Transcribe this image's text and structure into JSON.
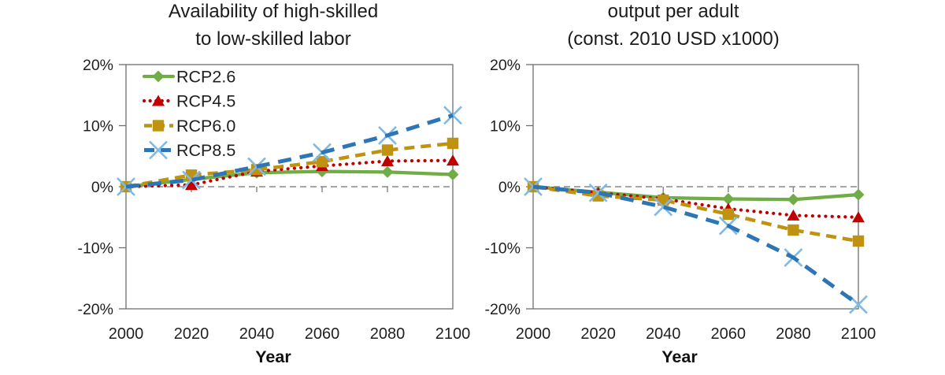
{
  "figure": {
    "background": "#ffffff",
    "text_color": "#1f1f1f",
    "axis_color": "#6e6e6e",
    "zero_line_color": "#999999",
    "tick_color": "#8a8a8a"
  },
  "chart_data": [
    {
      "type": "line",
      "title_line1": "Availability of high-skilled",
      "title_line2": "to low-skilled labor",
      "xlabel": "Year",
      "x": [
        2000,
        2020,
        2040,
        2060,
        2080,
        2100
      ],
      "x_tick_labels": [
        "2000",
        "2020",
        "2040",
        "2060",
        "2080",
        "2100"
      ],
      "y_ticks": [
        20,
        10,
        0,
        -10,
        -20
      ],
      "y_tick_labels": [
        "20%",
        "10%",
        "0%",
        "-10%",
        "-20%"
      ],
      "ylim": [
        -20,
        20
      ],
      "grid": false,
      "zero_line": "dashed-gray",
      "legend": {
        "visible": true,
        "position": "top-left-inside",
        "entries": [
          "RCP2.6",
          "RCP4.5",
          "RCP6.0",
          "RCP8.5"
        ]
      },
      "series": [
        {
          "name": "RCP2.6",
          "color": "#70AD47",
          "line_style": "solid",
          "marker": "diamond",
          "values": [
            0,
            1.2,
            2.3,
            2.5,
            2.4,
            2.0
          ]
        },
        {
          "name": "RCP4.5",
          "color": "#C00000",
          "line_style": "dotted",
          "marker": "triangle",
          "values": [
            0,
            0.3,
            2.5,
            3.4,
            4.2,
            4.3
          ]
        },
        {
          "name": "RCP6.0",
          "color": "#BF9310",
          "line_style": "dashed",
          "marker": "square",
          "values": [
            0,
            1.9,
            2.8,
            4.1,
            6.0,
            7.1
          ]
        },
        {
          "name": "RCP8.5",
          "color": "#2E75B6",
          "line_style": "long-dash",
          "marker": "x",
          "marker_color": "#7FB9E5",
          "values": [
            0,
            1.1,
            3.3,
            5.6,
            8.4,
            11.7
          ]
        }
      ]
    },
    {
      "type": "line",
      "title_line1": "output per adult",
      "title_line2": "(const. 2010 USD x1000)",
      "xlabel": "Year",
      "x": [
        2000,
        2020,
        2040,
        2060,
        2080,
        2100
      ],
      "x_tick_labels": [
        "2000",
        "2020",
        "2040",
        "2060",
        "2080",
        "2100"
      ],
      "y_ticks": [
        20,
        10,
        0,
        -10,
        -20
      ],
      "y_tick_labels": [
        "20%",
        "10%",
        "0%",
        "-10%",
        "-20%"
      ],
      "ylim": [
        -20,
        20
      ],
      "grid": false,
      "zero_line": "dashed-gray",
      "legend": {
        "visible": false,
        "position": null,
        "entries": []
      },
      "series": [
        {
          "name": "RCP2.6",
          "color": "#70AD47",
          "line_style": "solid",
          "marker": "diamond",
          "values": [
            0,
            -0.9,
            -1.8,
            -2.0,
            -2.1,
            -1.3
          ]
        },
        {
          "name": "RCP4.5",
          "color": "#C00000",
          "line_style": "dotted",
          "marker": "triangle",
          "values": [
            0,
            -1.0,
            -2.0,
            -3.6,
            -4.7,
            -5.0
          ]
        },
        {
          "name": "RCP6.0",
          "color": "#BF9310",
          "line_style": "dashed",
          "marker": "square",
          "values": [
            0,
            -1.5,
            -2.2,
            -4.5,
            -7.1,
            -8.9
          ]
        },
        {
          "name": "RCP8.5",
          "color": "#2E75B6",
          "line_style": "long-dash",
          "marker": "x",
          "marker_color": "#7FB9E5",
          "values": [
            0,
            -1.0,
            -3.3,
            -6.4,
            -11.6,
            -19.3
          ]
        }
      ]
    }
  ]
}
